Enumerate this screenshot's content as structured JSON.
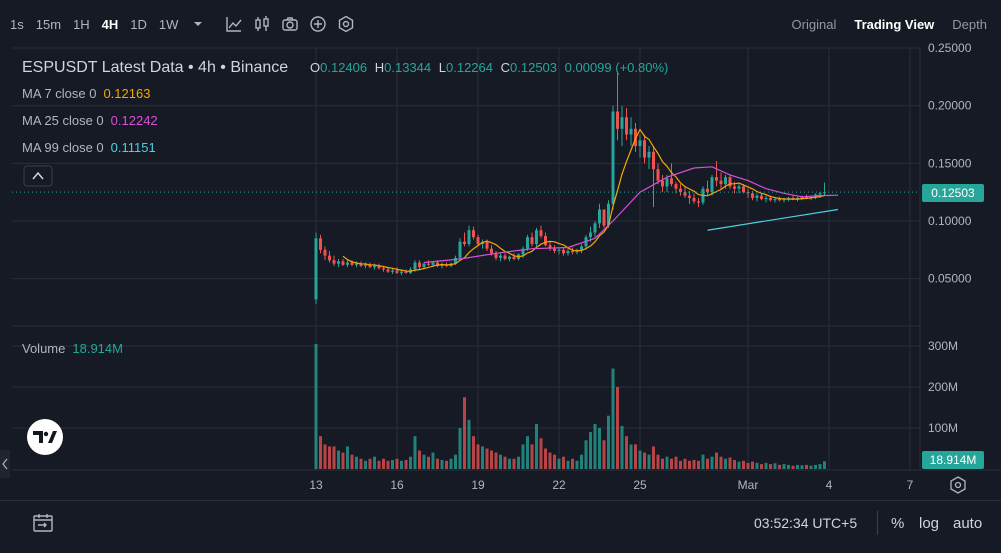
{
  "toolbar": {
    "timeframes": [
      {
        "label": "1s",
        "active": false
      },
      {
        "label": "15m",
        "active": false
      },
      {
        "label": "1H",
        "active": false
      },
      {
        "label": "4H",
        "active": true
      },
      {
        "label": "1D",
        "active": false
      },
      {
        "label": "1W",
        "active": false
      }
    ],
    "icons": [
      "chevron-down-icon",
      "indicators-icon",
      "candle-type-icon",
      "camera-icon",
      "add-icon",
      "settings-gear-icon"
    ],
    "views": [
      {
        "label": "Original",
        "active": false
      },
      {
        "label": "Trading View",
        "active": true
      },
      {
        "label": "Depth",
        "active": false
      }
    ]
  },
  "legend": {
    "title": "ESPUSDT Latest Data • 4h • Binance",
    "o_label": "O",
    "o_value": "0.12406",
    "h_label": "H",
    "h_value": "0.13344",
    "l_label": "L",
    "l_value": "0.12264",
    "c_label": "C",
    "c_value": "0.12503",
    "change": "0.00099 (+0.80%)",
    "ma7_label": "MA 7 close 0",
    "ma7_value": "0.12163",
    "ma25_label": "MA 25 close 0",
    "ma25_value": "0.12242",
    "ma99_label": "MA 99 close 0",
    "ma99_value": "0.11151",
    "volume_label": "Volume",
    "volume_value": "18.914M"
  },
  "colors": {
    "up": "#26a69a",
    "down": "#ef5350",
    "ma7": "#f7a600",
    "ma25": "#d94fd9",
    "ma99": "#4dd0e1",
    "background": "#161a25",
    "grid": "#2a2e39"
  },
  "price_label": "0.12503",
  "volume_badge": "18.914M",
  "footer": {
    "time": "03:52:34 UTC+5",
    "percent": "%",
    "log": "log",
    "auto": "auto"
  },
  "chart_data": {
    "type": "candlestick",
    "symbol": "ESPUSDT",
    "interval": "4h",
    "exchange": "Binance",
    "y_ticks": [
      "0.05000",
      "0.10000",
      "0.15000",
      "0.20000",
      "0.25000"
    ],
    "y_tick_values": [
      0.05,
      0.1,
      0.15,
      0.2,
      0.25
    ],
    "volume_ticks": [
      "100M",
      "200M",
      "300M"
    ],
    "volume_tick_values": [
      100,
      200,
      300
    ],
    "x_ticks": [
      "13",
      "16",
      "19",
      "22",
      "25",
      "Mar",
      "4",
      "7"
    ],
    "x_tick_positions": [
      0,
      18,
      36,
      54,
      72,
      96,
      114,
      132
    ],
    "last_close": 0.12503,
    "candles_ohlcv_M": [
      [
        0.032,
        0.09,
        0.028,
        0.085,
        305
      ],
      [
        0.085,
        0.088,
        0.072,
        0.075,
        80
      ],
      [
        0.075,
        0.078,
        0.066,
        0.07,
        60
      ],
      [
        0.07,
        0.074,
        0.064,
        0.066,
        55
      ],
      [
        0.066,
        0.07,
        0.061,
        0.063,
        55
      ],
      [
        0.063,
        0.067,
        0.06,
        0.065,
        45
      ],
      [
        0.065,
        0.067,
        0.061,
        0.062,
        40
      ],
      [
        0.062,
        0.066,
        0.06,
        0.064,
        55
      ],
      [
        0.064,
        0.066,
        0.061,
        0.062,
        35
      ],
      [
        0.062,
        0.065,
        0.06,
        0.063,
        30
      ],
      [
        0.063,
        0.065,
        0.06,
        0.061,
        25
      ],
      [
        0.061,
        0.064,
        0.059,
        0.062,
        20
      ],
      [
        0.062,
        0.064,
        0.059,
        0.06,
        25
      ],
      [
        0.06,
        0.063,
        0.058,
        0.061,
        30
      ],
      [
        0.061,
        0.063,
        0.058,
        0.059,
        20
      ],
      [
        0.059,
        0.061,
        0.056,
        0.058,
        25
      ],
      [
        0.058,
        0.06,
        0.055,
        0.056,
        20
      ],
      [
        0.056,
        0.059,
        0.054,
        0.057,
        22
      ],
      [
        0.057,
        0.06,
        0.054,
        0.055,
        25
      ],
      [
        0.055,
        0.058,
        0.053,
        0.056,
        20
      ],
      [
        0.056,
        0.058,
        0.054,
        0.055,
        22
      ],
      [
        0.055,
        0.06,
        0.054,
        0.058,
        30
      ],
      [
        0.058,
        0.066,
        0.056,
        0.064,
        80
      ],
      [
        0.064,
        0.066,
        0.058,
        0.06,
        45
      ],
      [
        0.06,
        0.064,
        0.058,
        0.063,
        35
      ],
      [
        0.063,
        0.066,
        0.061,
        0.062,
        30
      ],
      [
        0.062,
        0.065,
        0.06,
        0.064,
        40
      ],
      [
        0.064,
        0.066,
        0.06,
        0.061,
        25
      ],
      [
        0.061,
        0.064,
        0.059,
        0.062,
        22
      ],
      [
        0.062,
        0.064,
        0.06,
        0.061,
        20
      ],
      [
        0.061,
        0.064,
        0.06,
        0.063,
        25
      ],
      [
        0.063,
        0.07,
        0.062,
        0.068,
        35
      ],
      [
        0.068,
        0.085,
        0.066,
        0.082,
        100
      ],
      [
        0.082,
        0.09,
        0.078,
        0.08,
        175
      ],
      [
        0.08,
        0.096,
        0.078,
        0.092,
        120
      ],
      [
        0.092,
        0.095,
        0.084,
        0.086,
        80
      ],
      [
        0.086,
        0.088,
        0.078,
        0.08,
        60
      ],
      [
        0.08,
        0.084,
        0.076,
        0.082,
        55
      ],
      [
        0.082,
        0.084,
        0.074,
        0.076,
        50
      ],
      [
        0.076,
        0.079,
        0.07,
        0.072,
        45
      ],
      [
        0.072,
        0.074,
        0.066,
        0.068,
        40
      ],
      [
        0.068,
        0.072,
        0.065,
        0.07,
        35
      ],
      [
        0.07,
        0.072,
        0.066,
        0.067,
        30
      ],
      [
        0.067,
        0.07,
        0.065,
        0.069,
        25
      ],
      [
        0.069,
        0.072,
        0.066,
        0.067,
        25
      ],
      [
        0.067,
        0.072,
        0.066,
        0.071,
        30
      ],
      [
        0.071,
        0.078,
        0.068,
        0.076,
        60
      ],
      [
        0.076,
        0.088,
        0.074,
        0.086,
        80
      ],
      [
        0.086,
        0.09,
        0.078,
        0.08,
        60
      ],
      [
        0.08,
        0.094,
        0.078,
        0.092,
        110
      ],
      [
        0.092,
        0.096,
        0.085,
        0.087,
        75
      ],
      [
        0.087,
        0.09,
        0.078,
        0.079,
        50
      ],
      [
        0.079,
        0.082,
        0.074,
        0.076,
        40
      ],
      [
        0.076,
        0.079,
        0.072,
        0.074,
        35
      ],
      [
        0.074,
        0.077,
        0.071,
        0.075,
        25
      ],
      [
        0.075,
        0.077,
        0.07,
        0.072,
        30
      ],
      [
        0.072,
        0.076,
        0.07,
        0.074,
        20
      ],
      [
        0.074,
        0.077,
        0.071,
        0.073,
        25
      ],
      [
        0.073,
        0.076,
        0.071,
        0.075,
        20
      ],
      [
        0.075,
        0.08,
        0.072,
        0.078,
        35
      ],
      [
        0.078,
        0.088,
        0.075,
        0.086,
        70
      ],
      [
        0.086,
        0.095,
        0.082,
        0.09,
        90
      ],
      [
        0.09,
        0.1,
        0.086,
        0.098,
        110
      ],
      [
        0.098,
        0.115,
        0.094,
        0.11,
        100
      ],
      [
        0.11,
        0.108,
        0.094,
        0.096,
        70
      ],
      [
        0.096,
        0.118,
        0.094,
        0.115,
        130
      ],
      [
        0.115,
        0.2,
        0.11,
        0.195,
        245
      ],
      [
        0.195,
        0.23,
        0.17,
        0.18,
        200
      ],
      [
        0.18,
        0.2,
        0.165,
        0.19,
        105
      ],
      [
        0.19,
        0.198,
        0.17,
        0.175,
        80
      ],
      [
        0.175,
        0.19,
        0.165,
        0.18,
        60
      ],
      [
        0.18,
        0.185,
        0.16,
        0.165,
        60
      ],
      [
        0.165,
        0.175,
        0.155,
        0.17,
        45
      ],
      [
        0.17,
        0.175,
        0.15,
        0.155,
        40
      ],
      [
        0.155,
        0.165,
        0.145,
        0.16,
        35
      ],
      [
        0.16,
        0.165,
        0.112,
        0.145,
        55
      ],
      [
        0.145,
        0.15,
        0.132,
        0.135,
        35
      ],
      [
        0.135,
        0.14,
        0.125,
        0.13,
        25
      ],
      [
        0.13,
        0.14,
        0.125,
        0.137,
        30
      ],
      [
        0.137,
        0.15,
        0.13,
        0.132,
        25
      ],
      [
        0.132,
        0.134,
        0.124,
        0.128,
        30
      ],
      [
        0.128,
        0.132,
        0.122,
        0.125,
        20
      ],
      [
        0.125,
        0.13,
        0.12,
        0.122,
        25
      ],
      [
        0.122,
        0.126,
        0.115,
        0.12,
        20
      ],
      [
        0.12,
        0.124,
        0.115,
        0.117,
        22
      ],
      [
        0.117,
        0.12,
        0.112,
        0.116,
        20
      ],
      [
        0.116,
        0.13,
        0.114,
        0.128,
        35
      ],
      [
        0.128,
        0.135,
        0.122,
        0.125,
        25
      ],
      [
        0.125,
        0.14,
        0.122,
        0.138,
        30
      ],
      [
        0.138,
        0.152,
        0.13,
        0.135,
        40
      ],
      [
        0.135,
        0.142,
        0.128,
        0.132,
        30
      ],
      [
        0.132,
        0.14,
        0.128,
        0.138,
        25
      ],
      [
        0.138,
        0.14,
        0.128,
        0.13,
        28
      ],
      [
        0.13,
        0.134,
        0.124,
        0.128,
        22
      ],
      [
        0.128,
        0.132,
        0.124,
        0.13,
        18
      ],
      [
        0.13,
        0.132,
        0.124,
        0.125,
        20
      ],
      [
        0.125,
        0.128,
        0.12,
        0.124,
        15
      ],
      [
        0.124,
        0.126,
        0.118,
        0.12,
        18
      ],
      [
        0.12,
        0.124,
        0.117,
        0.122,
        15
      ],
      [
        0.122,
        0.124,
        0.118,
        0.119,
        12
      ],
      [
        0.119,
        0.122,
        0.116,
        0.12,
        15
      ],
      [
        0.12,
        0.122,
        0.117,
        0.118,
        12
      ],
      [
        0.118,
        0.12,
        0.116,
        0.119,
        14
      ],
      [
        0.119,
        0.121,
        0.117,
        0.118,
        10
      ],
      [
        0.118,
        0.12,
        0.116,
        0.119,
        12
      ],
      [
        0.119,
        0.121,
        0.117,
        0.12,
        10
      ],
      [
        0.12,
        0.122,
        0.118,
        0.119,
        8
      ],
      [
        0.119,
        0.121,
        0.117,
        0.12,
        10
      ],
      [
        0.12,
        0.122,
        0.118,
        0.121,
        9
      ],
      [
        0.121,
        0.123,
        0.119,
        0.12,
        10
      ],
      [
        0.12,
        0.122,
        0.118,
        0.121,
        8
      ],
      [
        0.121,
        0.124,
        0.119,
        0.123,
        10
      ],
      [
        0.123,
        0.125,
        0.12,
        0.124,
        12
      ],
      [
        0.124,
        0.1334,
        0.1226,
        0.125,
        18.914
      ]
    ],
    "ma25": [
      [
        24,
        0.064
      ],
      [
        32,
        0.067
      ],
      [
        40,
        0.072
      ],
      [
        48,
        0.076
      ],
      [
        56,
        0.077
      ],
      [
        62,
        0.085
      ],
      [
        66,
        0.1
      ],
      [
        72,
        0.125
      ],
      [
        78,
        0.138
      ],
      [
        84,
        0.146
      ],
      [
        88,
        0.147
      ],
      [
        92,
        0.14
      ],
      [
        96,
        0.135
      ],
      [
        100,
        0.128
      ],
      [
        104,
        0.124
      ],
      [
        108,
        0.121
      ],
      [
        112,
        0.122
      ],
      [
        116,
        0.1224
      ]
    ],
    "trendline": [
      [
        87,
        0.092
      ],
      [
        116,
        0.11
      ]
    ]
  }
}
